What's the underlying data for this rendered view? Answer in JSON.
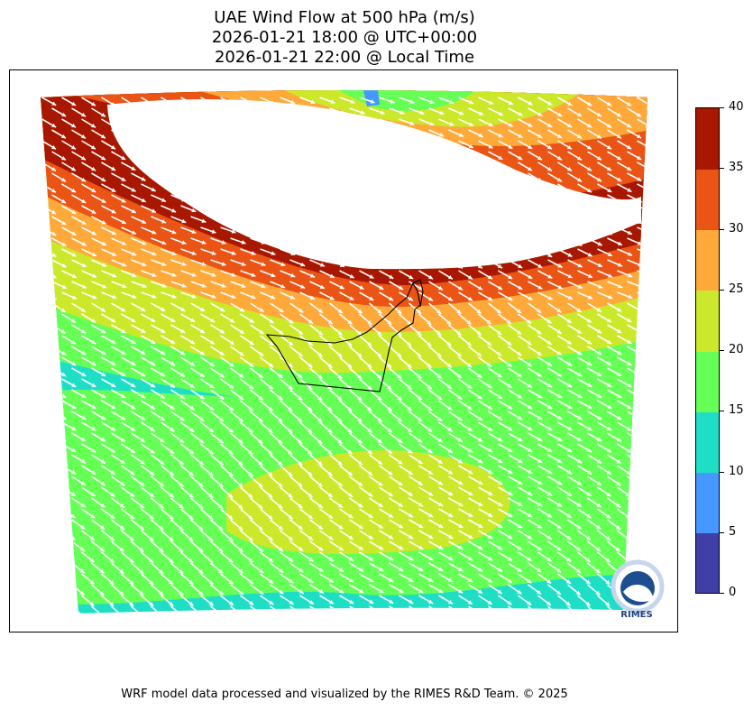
{
  "title": {
    "line1": "UAE Wind Flow at 500 hPa (m/s)",
    "line2": "2026-01-21 18:00 @ UTC+00:00",
    "line3": "2026-01-21 22:00 @ Local Time"
  },
  "footer": "WRF model data processed and visualized by the RIMES R&D Team. © 2025",
  "logo": {
    "text": "RIMES",
    "icon": "rimes-logo-icon"
  },
  "colorbar": {
    "ticks": [
      "0",
      "5",
      "10",
      "15",
      "20",
      "25",
      "30",
      "35",
      "40"
    ],
    "colors": [
      "#3f3fa6",
      "#4697ff",
      "#1edfc6",
      "#66ff55",
      "#cce82b",
      "#ffa93b",
      "#ea5414",
      "#a81700"
    ]
  },
  "map": {
    "region": "UAE",
    "wind_direction": "north-west to south-east",
    "masked_area_color": "#ffffff",
    "speed_colors": {
      "dark_red": "#a81700",
      "red_orange": "#ea5414",
      "orange": "#ffa93b",
      "yellow_green": "#cce82b",
      "green": "#66ff55",
      "cyan": "#1edfc6",
      "blue": "#4697ff"
    }
  }
}
